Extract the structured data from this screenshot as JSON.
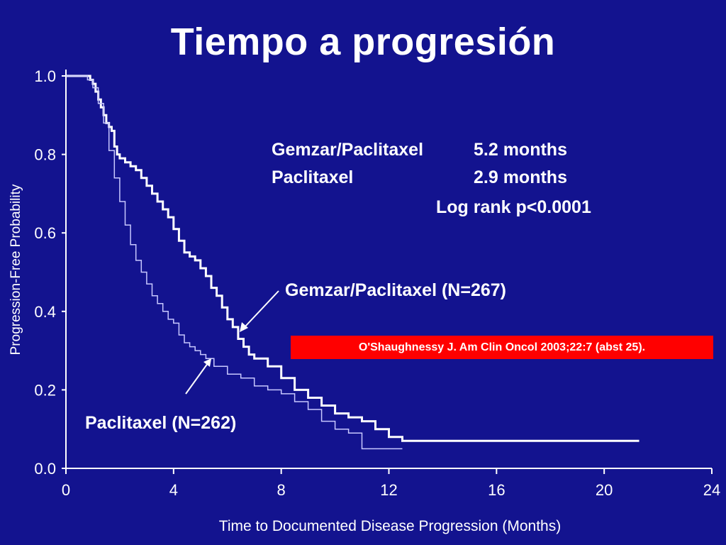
{
  "slide": {
    "title": "Tiempo a progresión",
    "citation": "O'Shaughnessy J. Am Clin Oncol 2003;22:7 (abst 25)."
  },
  "colors": {
    "background": "#13138f",
    "foreground": "#ffffff",
    "citation_bg": "#ff0000"
  },
  "chart_data": {
    "type": "line",
    "subtype": "kaplan-meier step",
    "xlabel": "Time to Documented Disease Progression (Months)",
    "ylabel": "Progression-Free Probability",
    "xlim": [
      0,
      24
    ],
    "ylim": [
      0,
      1
    ],
    "x_ticks": [
      0,
      4,
      8,
      12,
      16,
      20,
      24
    ],
    "y_ticks": [
      "0.0",
      "0.2",
      "0.4",
      "0.6",
      "0.8",
      "1.0"
    ],
    "grid": false,
    "summary": {
      "rows": [
        {
          "label": "Gemzar/Paclitaxel",
          "value": "5.2 months"
        },
        {
          "label": "Paclitaxel",
          "value": "2.9 months"
        }
      ],
      "stat": "Log rank p<0.0001"
    },
    "series": [
      {
        "name": "Gemzar/Paclitaxel (N=267)",
        "style": "thick",
        "x": [
          0,
          0.9,
          1.0,
          1.1,
          1.2,
          1.3,
          1.4,
          1.5,
          1.6,
          1.7,
          1.8,
          1.9,
          2.0,
          2.2,
          2.4,
          2.6,
          2.8,
          3.0,
          3.2,
          3.4,
          3.6,
          3.8,
          4.0,
          4.2,
          4.4,
          4.6,
          4.8,
          5.0,
          5.2,
          5.4,
          5.6,
          5.8,
          6.0,
          6.2,
          6.4,
          6.6,
          6.8,
          7.0,
          7.5,
          8.0,
          8.5,
          9.0,
          9.5,
          10.0,
          10.5,
          11.0,
          11.5,
          12.0,
          12.5,
          14.0,
          16.0,
          18.0,
          20.0,
          21.3
        ],
        "y": [
          1.0,
          0.99,
          0.98,
          0.96,
          0.94,
          0.92,
          0.9,
          0.88,
          0.87,
          0.86,
          0.82,
          0.8,
          0.79,
          0.78,
          0.77,
          0.76,
          0.74,
          0.72,
          0.7,
          0.68,
          0.66,
          0.64,
          0.61,
          0.58,
          0.55,
          0.54,
          0.53,
          0.51,
          0.49,
          0.46,
          0.44,
          0.41,
          0.38,
          0.36,
          0.33,
          0.31,
          0.29,
          0.28,
          0.26,
          0.23,
          0.2,
          0.18,
          0.16,
          0.14,
          0.13,
          0.12,
          0.1,
          0.08,
          0.07,
          0.07,
          0.07,
          0.07,
          0.07,
          0.07
        ]
      },
      {
        "name": "Paclitaxel (N=262)",
        "style": "thin",
        "x": [
          0,
          0.8,
          1.0,
          1.2,
          1.4,
          1.6,
          1.8,
          2.0,
          2.2,
          2.4,
          2.6,
          2.8,
          3.0,
          3.2,
          3.4,
          3.6,
          3.8,
          4.0,
          4.2,
          4.4,
          4.6,
          4.8,
          5.0,
          5.2,
          5.5,
          6.0,
          6.5,
          7.0,
          7.5,
          8.0,
          8.5,
          9.0,
          9.5,
          10.0,
          10.5,
          11.0,
          12.0,
          12.5
        ],
        "y": [
          1.0,
          0.99,
          0.97,
          0.93,
          0.88,
          0.81,
          0.74,
          0.68,
          0.62,
          0.57,
          0.53,
          0.5,
          0.47,
          0.44,
          0.42,
          0.4,
          0.38,
          0.37,
          0.34,
          0.32,
          0.31,
          0.3,
          0.29,
          0.28,
          0.26,
          0.24,
          0.23,
          0.21,
          0.2,
          0.19,
          0.17,
          0.15,
          0.12,
          0.1,
          0.09,
          0.05,
          0.05,
          0.05
        ]
      }
    ],
    "annotations": [
      {
        "text": "Gemzar/Paclitaxel (N=267)",
        "series": 0
      },
      {
        "text": "Paclitaxel (N=262)",
        "series": 1
      }
    ]
  }
}
